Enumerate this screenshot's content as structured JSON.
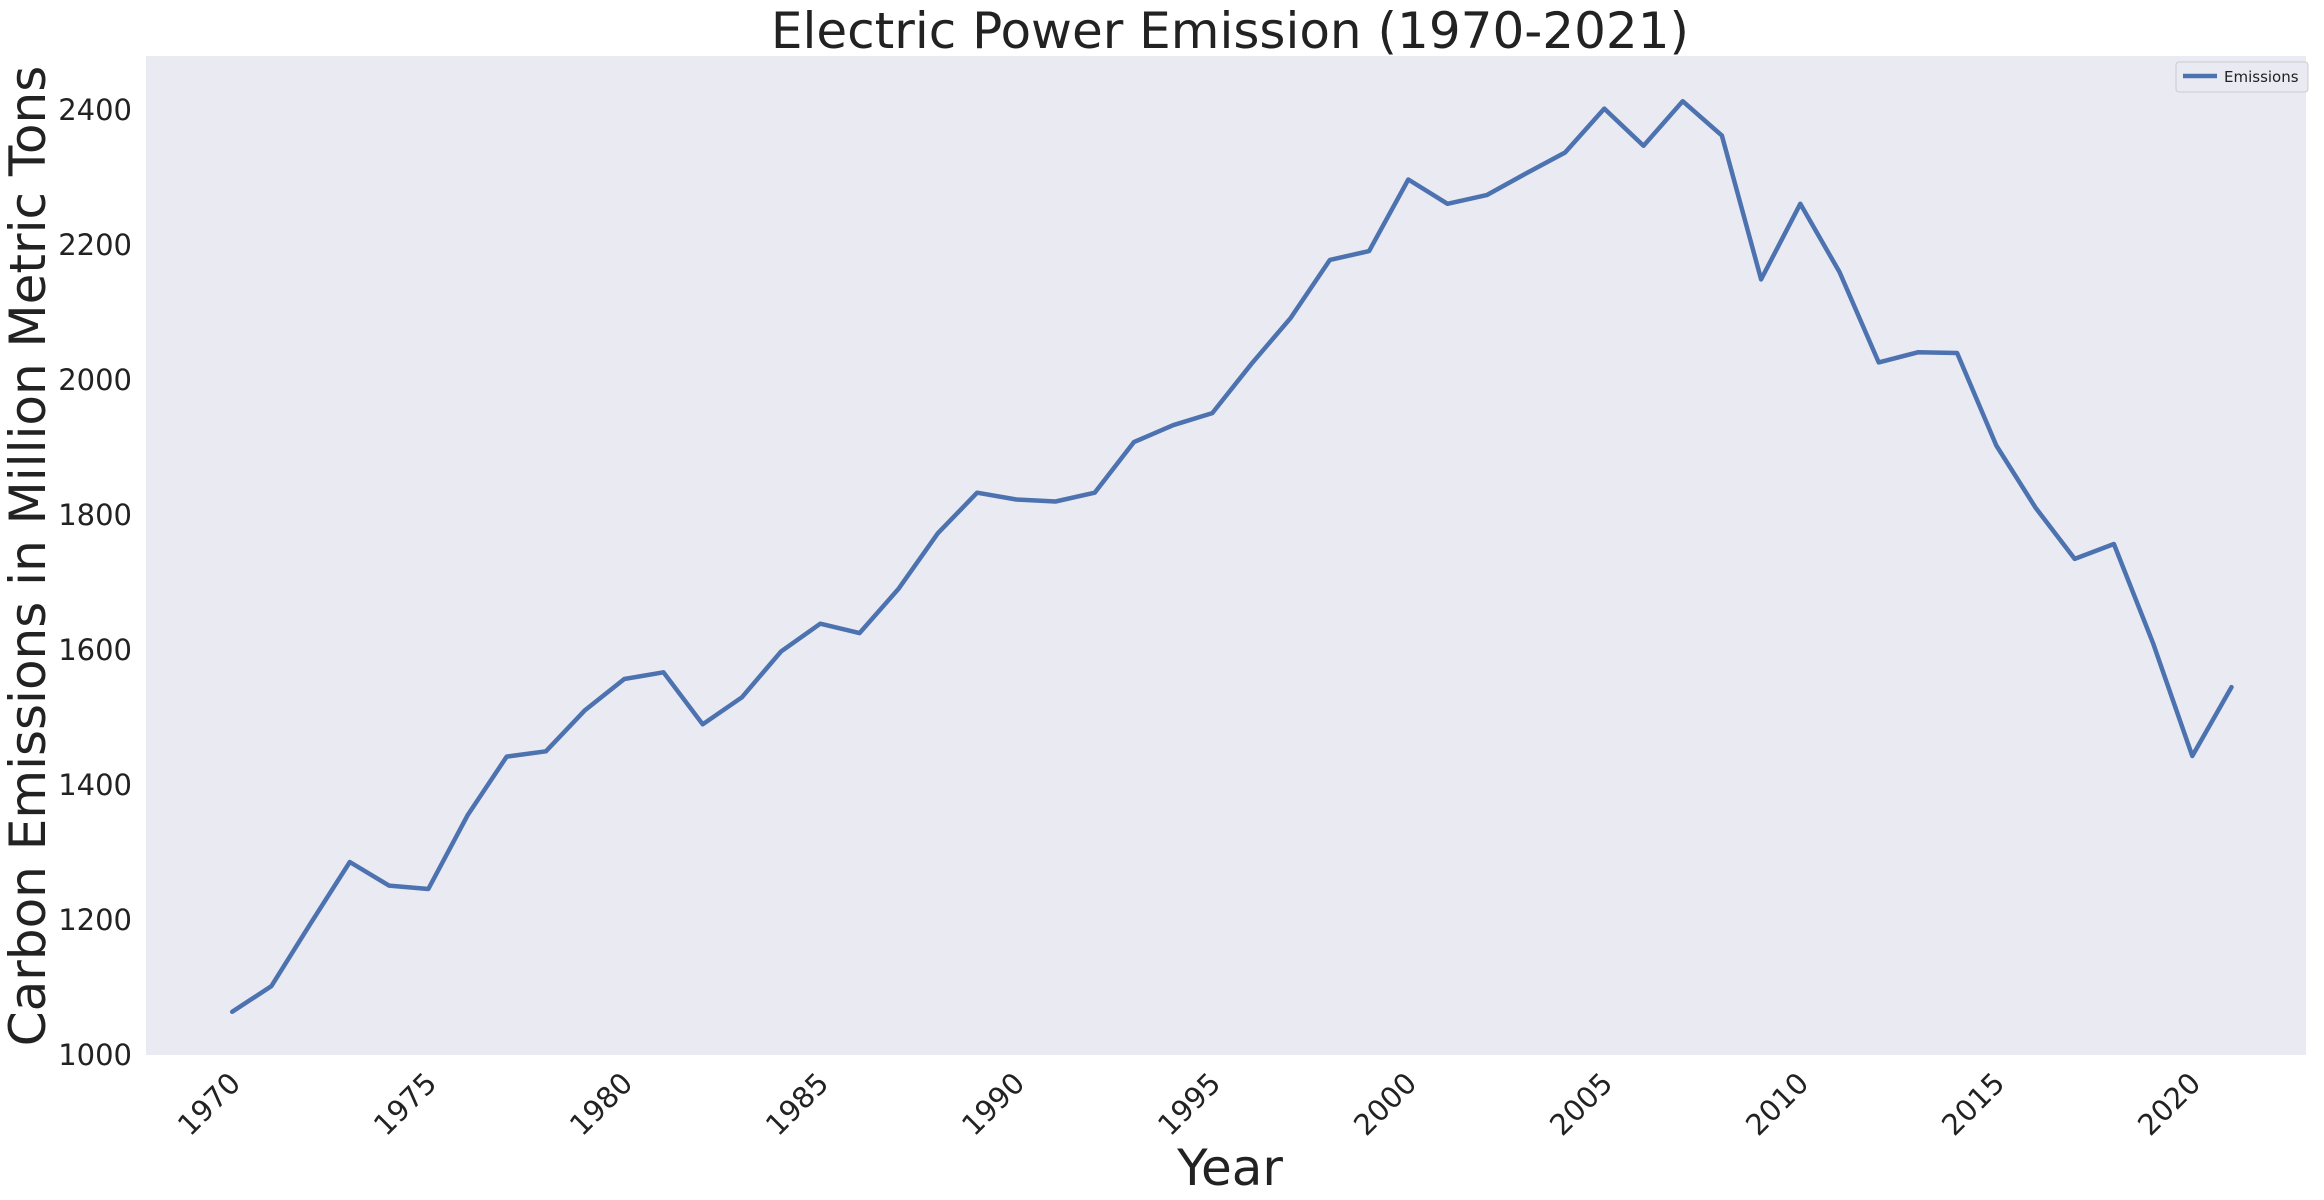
{
  "chart_data": {
    "type": "line",
    "title": "Electric Power Emission (1970-2021)",
    "xlabel": "Year",
    "ylabel": "Carbon Emissions in Million Metric Tons",
    "xlim": [
      1967.8,
      2022.9
    ],
    "ylim": [
      1000,
      2480
    ],
    "x_ticks": [
      1970,
      1975,
      1980,
      1985,
      1990,
      1995,
      2000,
      2005,
      2010,
      2015,
      2020
    ],
    "y_ticks": [
      1000,
      1200,
      1400,
      1600,
      1800,
      2000,
      2200,
      2400
    ],
    "grid": false,
    "legend_position": "top-right",
    "series": [
      {
        "name": "Emissions",
        "color": "#4c72b0",
        "x": [
          1970,
          1971,
          1972,
          1973,
          1974,
          1975,
          1976,
          1977,
          1978,
          1979,
          1980,
          1981,
          1982,
          1983,
          1984,
          1985,
          1986,
          1987,
          1988,
          1989,
          1990,
          1991,
          1992,
          1993,
          1994,
          1995,
          1996,
          1997,
          1998,
          1999,
          2000,
          2001,
          2002,
          2003,
          2004,
          2005,
          2006,
          2007,
          2008,
          2009,
          2010,
          2011,
          2012,
          2013,
          2014,
          2015,
          2016,
          2017,
          2018,
          2019,
          2020,
          2021
        ],
        "values": [
          1064,
          1102,
          1195,
          1286,
          1251,
          1246,
          1355,
          1442,
          1450,
          1511,
          1557,
          1567,
          1490,
          1530,
          1598,
          1639,
          1625,
          1691,
          1773,
          1833,
          1823,
          1820,
          1833,
          1908,
          1933,
          1951,
          2024,
          2092,
          2178,
          2191,
          2297,
          2261,
          2274,
          2306,
          2337,
          2402,
          2347,
          2413,
          2362,
          2149,
          2261,
          2160,
          2026,
          2041,
          2040,
          1903,
          1811,
          1735,
          1757,
          1610,
          1443,
          1545
        ]
      }
    ]
  }
}
